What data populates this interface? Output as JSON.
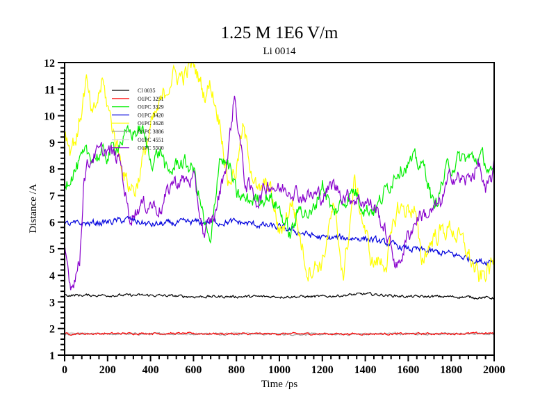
{
  "chart_data": {
    "type": "line",
    "title": "1.25 M 1E6 V/m",
    "subtitle": "Li 0014",
    "xlabel": "Time /ps",
    "ylabel": "Distance /A",
    "xlim": [
      0,
      2000
    ],
    "ylim": [
      1,
      12
    ],
    "xticks": [
      0,
      200,
      400,
      600,
      800,
      1000,
      1200,
      1400,
      1600,
      1800,
      2000
    ],
    "xtick_labels": [
      "0",
      "200",
      "400",
      "600",
      "800",
      "1000",
      "1200",
      "1400",
      "1600",
      "1800",
      "2000"
    ],
    "yticks": [
      1,
      2,
      3,
      4,
      5,
      6,
      7,
      8,
      9,
      10,
      11,
      12
    ],
    "ytick_labels": [
      "1",
      "2",
      "3",
      "4",
      "5",
      "6",
      "7",
      "8",
      "9",
      "10",
      "11",
      "12"
    ],
    "grid": false,
    "legend_position": "top-left",
    "series": [
      {
        "name": "Cl 0035",
        "color": "#000000",
        "x": [
          0,
          200,
          400,
          600,
          800,
          1000,
          1200,
          1400,
          1600,
          1800,
          2000
        ],
        "y": [
          3.25,
          3.25,
          3.25,
          3.2,
          3.2,
          3.2,
          3.2,
          3.3,
          3.2,
          3.2,
          3.15
        ]
      },
      {
        "name": "O1PC 3251",
        "color": "#ff0000",
        "x": [
          0,
          400,
          800,
          1200,
          1600,
          2000
        ],
        "y": [
          1.8,
          1.82,
          1.8,
          1.8,
          1.8,
          1.82
        ]
      },
      {
        "name": "O1PC 3329",
        "color": "#00ee00",
        "x": [
          0,
          50,
          100,
          200,
          250,
          300,
          360,
          400,
          450,
          480,
          530,
          600,
          650,
          680,
          720,
          770,
          800,
          850,
          950,
          1000,
          1050,
          1100,
          1150,
          1200,
          1250,
          1300,
          1350,
          1400,
          1450,
          1550,
          1630,
          1680,
          1720,
          1780,
          1850,
          1950,
          2000
        ],
        "y": [
          7.5,
          8.0,
          8.5,
          8.5,
          9.0,
          9.3,
          9.5,
          8.3,
          8.7,
          7.7,
          8.3,
          8.0,
          6.0,
          5.0,
          8.5,
          8.0,
          7.0,
          6.8,
          7.0,
          6.5,
          5.5,
          6.6,
          6.2,
          7.5,
          6.3,
          6.8,
          7.2,
          6.5,
          6.5,
          8.0,
          8.3,
          8.0,
          6.5,
          8.0,
          8.4,
          8.4,
          7.5
        ]
      },
      {
        "name": "O1PC 3420",
        "color": "#0000dd",
        "x": [
          0,
          200,
          300,
          400,
          600,
          800,
          1000,
          1100,
          1200,
          1400,
          1600,
          1800,
          1950,
          2000
        ],
        "y": [
          5.9,
          6.0,
          6.1,
          5.9,
          6.0,
          6.0,
          5.8,
          5.6,
          5.4,
          5.4,
          5.0,
          4.8,
          4.5,
          4.6
        ]
      },
      {
        "name": "O1PC 3628",
        "color": "#ffff00",
        "x": [
          0,
          25,
          60,
          100,
          130,
          175,
          210,
          250,
          290,
          330,
          400,
          450,
          500,
          560,
          600,
          650,
          680,
          730,
          760,
          800,
          830,
          900,
          950,
          1000,
          1060,
          1130,
          1200,
          1250,
          1300,
          1350,
          1430,
          1500,
          1550,
          1630,
          1660,
          1720,
          1800,
          1870,
          1930,
          2000
        ],
        "y": [
          9.5,
          8.8,
          9.3,
          11.3,
          9.8,
          11.3,
          10.0,
          8.7,
          7.5,
          7.2,
          9.5,
          10.5,
          11.5,
          11.5,
          12.0,
          10.8,
          11.2,
          9.5,
          7.5,
          8.0,
          9.5,
          7.0,
          7.5,
          5.5,
          6.8,
          4.2,
          4.5,
          6.5,
          4.0,
          7.5,
          4.5,
          4.5,
          6.5,
          6.5,
          4.5,
          5.5,
          5.8,
          5.0,
          3.8,
          4.5
        ]
      },
      {
        "name": "O1PC 3886",
        "color": "#a0a0a0",
        "x": [
          0,
          400,
          800,
          1200,
          1600,
          2000
        ],
        "y": [
          1.78,
          1.8,
          1.8,
          1.78,
          1.8,
          1.8
        ]
      },
      {
        "name": "O1PC 4551",
        "color": "#d8d8d8",
        "x": [
          0,
          400,
          800,
          1200,
          1600,
          2000
        ],
        "y": [
          1.82,
          1.8,
          1.82,
          1.8,
          1.82,
          1.8
        ]
      },
      {
        "name": "O1PC 5500",
        "color": "#8800cc",
        "x": [
          0,
          30,
          70,
          90,
          130,
          200,
          260,
          300,
          350,
          400,
          450,
          500,
          600,
          650,
          700,
          760,
          790,
          840,
          900,
          950,
          1000,
          1050,
          1100,
          1200,
          1250,
          1300,
          1400,
          1450,
          1500,
          1550,
          1600,
          1650,
          1700,
          1750,
          1800,
          1870,
          1930,
          1960,
          2000
        ],
        "y": [
          5.0,
          3.6,
          4.5,
          7.8,
          8.5,
          8.7,
          8.3,
          6.2,
          6.6,
          6.7,
          6.5,
          7.5,
          7.6,
          5.5,
          6.3,
          8.5,
          10.8,
          7.5,
          6.8,
          7.5,
          7.2,
          7.3,
          7.0,
          7.0,
          7.4,
          7.0,
          6.8,
          6.5,
          5.5,
          4.3,
          5.5,
          6.3,
          6.3,
          6.7,
          7.8,
          7.5,
          8.2,
          7.0,
          8.0
        ]
      }
    ]
  }
}
